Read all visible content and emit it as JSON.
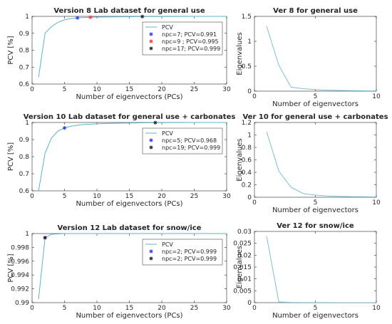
{
  "colors": {
    "pcv_line": "#5bb5c8",
    "eig_line": "#7fbfd0",
    "marker_blue": "#3333ff",
    "marker_red": "#ff3333",
    "marker_black": "#222222",
    "axis": "#262626"
  },
  "chart_data": [
    {
      "id": "pcv_v8",
      "type": "line",
      "title": "Version 8 Lab dataset for general use",
      "xlabel": "Number of eigenvectors (PCs)",
      "ylabel": "PCV [%]",
      "xlim": [
        0,
        30
      ],
      "ylim": [
        0.6,
        1.0
      ],
      "xticks": [
        0,
        5,
        10,
        15,
        20,
        25,
        30
      ],
      "yticks": [
        0.6,
        0.7,
        0.8,
        0.9,
        1
      ],
      "grid": false,
      "legend": "top-right",
      "series": [
        {
          "name": "PCV",
          "color": "pcv_line",
          "x": [
            1,
            2,
            3,
            4,
            5,
            6,
            7,
            8,
            9,
            10,
            12,
            15,
            17,
            20,
            25,
            30
          ],
          "y": [
            0.64,
            0.9,
            0.94,
            0.965,
            0.98,
            0.987,
            0.991,
            0.993,
            0.995,
            0.996,
            0.997,
            0.998,
            0.999,
            0.999,
            1.0,
            1.0
          ]
        }
      ],
      "markers": [
        {
          "label": "npc=7; PCV=0.991",
          "x": 7,
          "y": 0.991,
          "color": "marker_blue"
        },
        {
          "label": "npc=9 ; PCV=0.995",
          "x": 9,
          "y": 0.995,
          "color": "marker_red"
        },
        {
          "label": "npc=17; PCV=0.999",
          "x": 17,
          "y": 0.999,
          "color": "marker_black"
        }
      ]
    },
    {
      "id": "eig_v8",
      "type": "line",
      "title": "Ver 8 for general use",
      "xlabel": "Number of eigenvectors",
      "ylabel": "Eigenvalues",
      "xlim": [
        0,
        10
      ],
      "ylim": [
        0,
        1.5
      ],
      "xticks": [
        0,
        5,
        10
      ],
      "yticks": [
        0,
        0.5,
        1,
        1.5
      ],
      "grid": false,
      "series": [
        {
          "color": "eig_line",
          "x": [
            1,
            2,
            3,
            4,
            5,
            6,
            7,
            8,
            9,
            10
          ],
          "y": [
            1.3,
            0.52,
            0.08,
            0.05,
            0.03,
            0.02,
            0.015,
            0.01,
            0.008,
            0.005
          ]
        }
      ],
      "markers": []
    },
    {
      "id": "pcv_v10",
      "type": "line",
      "title": "Version 10 Lab dataset for general use + carbonates",
      "xlabel": "Number of eigenvectors (PCs)",
      "ylabel": "PCV [%]",
      "xlim": [
        0,
        30
      ],
      "ylim": [
        0.6,
        1.0
      ],
      "xticks": [
        0,
        5,
        10,
        15,
        20,
        25,
        30
      ],
      "yticks": [
        0.6,
        0.7,
        0.8,
        0.9,
        1
      ],
      "grid": false,
      "legend": "top-right",
      "series": [
        {
          "name": "PCV",
          "color": "pcv_line",
          "x": [
            1,
            2,
            3,
            4,
            5,
            6,
            7,
            8,
            10,
            12,
            15,
            19,
            25,
            30
          ],
          "y": [
            0.6,
            0.82,
            0.91,
            0.95,
            0.968,
            0.978,
            0.984,
            0.988,
            0.992,
            0.995,
            0.997,
            0.999,
            1.0,
            1.0
          ]
        }
      ],
      "markers": [
        {
          "label": "npc=5; PCV=0.968",
          "x": 5,
          "y": 0.968,
          "color": "marker_blue"
        },
        {
          "label": "npc=19; PCV=0.999",
          "x": 19,
          "y": 0.999,
          "color": "marker_black"
        }
      ]
    },
    {
      "id": "eig_v10",
      "type": "line",
      "title": "Ver 10 for general use + carbonates",
      "xlabel": "Number of eigenvectors",
      "ylabel": "Eigenvalues",
      "xlim": [
        0,
        10
      ],
      "ylim": [
        0,
        1.2
      ],
      "xticks": [
        0,
        5,
        10
      ],
      "yticks": [
        0,
        0.2,
        0.4,
        0.6,
        0.8,
        1,
        1.2
      ],
      "grid": false,
      "series": [
        {
          "color": "eig_line",
          "x": [
            1,
            2,
            3,
            4,
            5,
            6,
            7,
            8,
            9,
            10
          ],
          "y": [
            1.05,
            0.42,
            0.16,
            0.06,
            0.035,
            0.02,
            0.015,
            0.01,
            0.008,
            0.005
          ]
        }
      ],
      "markers": []
    },
    {
      "id": "pcv_v12",
      "type": "line",
      "title": "Version 12 Lab dataset for snow/ice",
      "xlabel": "Number of eigenvectors (PCs)",
      "ylabel": "PCV [%]",
      "xlim": [
        0,
        30
      ],
      "ylim": [
        0.99,
        1.0
      ],
      "xticks": [
        0,
        5,
        10,
        15,
        20,
        25,
        30
      ],
      "yticks": [
        0.99,
        0.992,
        0.994,
        0.996,
        0.998,
        1
      ],
      "grid": false,
      "legend": "top-right",
      "series": [
        {
          "name": "PCV",
          "color": "pcv_line",
          "x": [
            1,
            2,
            3,
            5,
            10,
            20,
            30
          ],
          "y": [
            0.9905,
            0.9994,
            0.9999,
            1.0,
            1.0,
            1.0,
            1.0
          ]
        }
      ],
      "markers": [
        {
          "label": "npc=2; PCV=0.999",
          "x": 2,
          "y": 0.9994,
          "color": "marker_blue"
        },
        {
          "label": "npc=2; PCV=0.999",
          "x": 2,
          "y": 0.9994,
          "color": "marker_black"
        }
      ]
    },
    {
      "id": "eig_v12",
      "type": "line",
      "title": "Ver 12 for snow/ice",
      "xlabel": "Number of eigenvectors",
      "ylabel": "Eigenvalues",
      "xlim": [
        0,
        10
      ],
      "ylim": [
        0,
        0.03
      ],
      "xticks": [
        0,
        5,
        10
      ],
      "yticks": [
        0,
        0.005,
        0.01,
        0.015,
        0.02,
        0.025,
        0.03
      ],
      "grid": false,
      "series": [
        {
          "color": "eig_line",
          "x": [
            1,
            2,
            3,
            4,
            5,
            6,
            7,
            8,
            9,
            10
          ],
          "y": [
            0.028,
            0.0003,
            0.0001,
            5e-05,
            3e-05,
            2e-05,
            1e-05,
            1e-05,
            1e-05,
            1e-05
          ]
        }
      ],
      "markers": []
    }
  ]
}
